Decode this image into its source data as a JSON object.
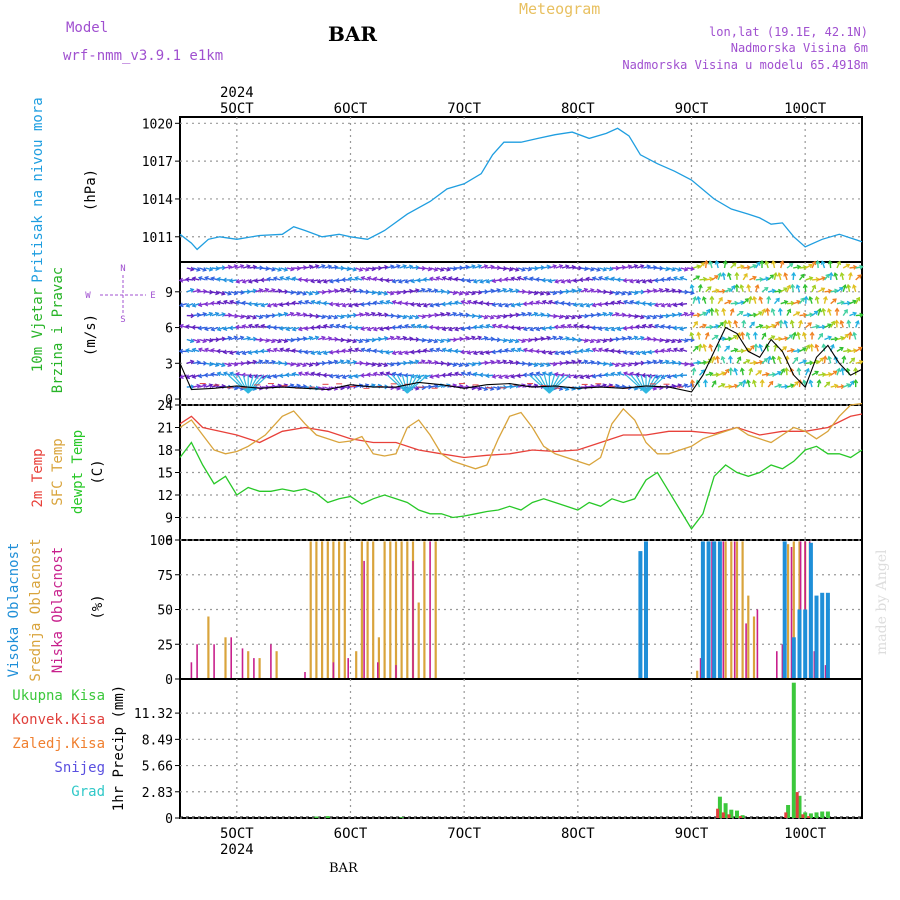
{
  "header": {
    "meteogram": "Meteogram",
    "model_label": "Model",
    "model_name": "wrf-nmm_v3.9.1 e1km",
    "station": "BAR",
    "location": "lon,lat (19.1E, 42.1N)",
    "elevation": "Nadmorska Visina 6m",
    "model_elevation": "Nadmorska Visina u modelu 65.4918m"
  },
  "footer": {
    "station": "BAR",
    "credit": "made by Angel"
  },
  "colors": {
    "pressure": "#1f9ee0",
    "temp2m": "#e8413a",
    "sfctemp": "#d9a43c",
    "dewpoint": "#28c828",
    "high_cloud": "#1f8fd8",
    "mid_cloud": "#d9a43c",
    "low_cloud": "#c8208c",
    "total_precip": "#3cc83c",
    "conv_precip": "#e0403c",
    "freezing_precip": "#f08030",
    "snow": "#5a50e0",
    "hail": "#30c8c8",
    "wind_label": "#28b428",
    "dir_label": "#a050d0",
    "title": "#a050d0"
  },
  "chart_data": [
    {
      "type": "line",
      "title": "Pritisak na nivou mora",
      "ylabel": "(hPa)",
      "ylim": [
        1009,
        1020.5
      ],
      "yticks": [
        1011,
        1014,
        1017,
        1020
      ],
      "x_unit": "day of October 2024",
      "x_ticks": [
        {
          "x": 5,
          "label": "5OCT"
        },
        {
          "x": 6,
          "label": "6OCT"
        },
        {
          "x": 7,
          "label": "7OCT"
        },
        {
          "x": 8,
          "label": "8OCT"
        },
        {
          "x": 9,
          "label": "9OCT"
        },
        {
          "x": 10,
          "label": "10OCT"
        }
      ],
      "x_year": "2024",
      "xlim": [
        4.5,
        10.5
      ],
      "grid": true,
      "series": [
        {
          "x": [
            4.5,
            4.6,
            4.65,
            4.75,
            4.85,
            5.0,
            5.2,
            5.4,
            5.5,
            5.6,
            5.75,
            5.9,
            6.0,
            6.15,
            6.3,
            6.5,
            6.7,
            6.85,
            7.0,
            7.15,
            7.25,
            7.35,
            7.5,
            7.65,
            7.8,
            7.95,
            8.1,
            8.25,
            8.35,
            8.45,
            8.55,
            8.7,
            8.85,
            9.0,
            9.2,
            9.35,
            9.5,
            9.6,
            9.7,
            9.8,
            9.9,
            10.0,
            10.15,
            10.3,
            10.5
          ],
          "y": [
            1011.2,
            1010.5,
            1010.0,
            1010.8,
            1011.0,
            1010.8,
            1011.1,
            1011.2,
            1011.8,
            1011.5,
            1011.0,
            1011.2,
            1011.0,
            1010.8,
            1011.5,
            1012.8,
            1013.8,
            1014.8,
            1015.2,
            1016.0,
            1017.5,
            1018.5,
            1018.5,
            1018.8,
            1019.1,
            1019.3,
            1018.8,
            1019.2,
            1019.6,
            1019.0,
            1017.5,
            1016.8,
            1016.2,
            1015.5,
            1014.0,
            1013.2,
            1012.8,
            1012.5,
            1012.0,
            1012.1,
            1011.0,
            1010.2,
            1010.8,
            1011.2,
            1010.6
          ]
        }
      ]
    },
    {
      "type": "scatter",
      "title": "10m Vjetar Brzina i Pravac",
      "ylabel": "(m/s)",
      "ylim": [
        -0.5,
        11.5
      ],
      "yticks": [
        0,
        3,
        6,
        9
      ],
      "direction_legend": "N, E, S, W compass arrows",
      "grid": true,
      "series": [
        {
          "name": "wind speed",
          "x": [
            4.5,
            4.6,
            4.8,
            5.0,
            5.2,
            5.4,
            5.6,
            5.8,
            6.0,
            6.2,
            6.4,
            6.6,
            6.8,
            7.0,
            7.2,
            7.4,
            7.6,
            7.8,
            8.0,
            8.2,
            8.4,
            8.6,
            8.8,
            9.0,
            9.1,
            9.2,
            9.3,
            9.4,
            9.5,
            9.6,
            9.7,
            9.8,
            9.9,
            10.0,
            10.1,
            10.2,
            10.3,
            10.4,
            10.5
          ],
          "y": [
            3.0,
            0.8,
            0.9,
            1.1,
            0.9,
            1.0,
            0.9,
            0.8,
            1.2,
            1.0,
            1.0,
            1.4,
            1.2,
            0.9,
            1.2,
            1.3,
            1.0,
            1.1,
            0.9,
            1.0,
            0.9,
            1.1,
            1.0,
            0.6,
            2.0,
            4.0,
            6.0,
            5.5,
            4.0,
            3.5,
            5.0,
            4.0,
            2.0,
            1.0,
            3.5,
            4.5,
            3.0,
            2.0,
            2.5
          ]
        }
      ]
    },
    {
      "type": "line",
      "title": "2m Temp / SFC Temp / dewpt Temp",
      "ylabel": "(C)",
      "ylim": [
        6,
        24
      ],
      "yticks": [
        6,
        9,
        12,
        15,
        18,
        21,
        24
      ],
      "grid": true,
      "series": [
        {
          "name": "2m Temp",
          "x": [
            4.5,
            4.6,
            4.7,
            4.85,
            5.0,
            5.2,
            5.4,
            5.6,
            5.8,
            6.0,
            6.2,
            6.4,
            6.6,
            6.8,
            7.0,
            7.2,
            7.4,
            7.6,
            7.8,
            8.0,
            8.2,
            8.4,
            8.6,
            8.8,
            9.0,
            9.2,
            9.4,
            9.6,
            9.8,
            10.0,
            10.2,
            10.4,
            10.5
          ],
          "y": [
            21.5,
            22.5,
            21.0,
            20.5,
            20.0,
            19.0,
            20.5,
            21.0,
            20.5,
            19.5,
            19.0,
            19.0,
            18.0,
            17.5,
            17.0,
            17.3,
            17.5,
            18.0,
            17.8,
            18.0,
            19.0,
            20.0,
            20.0,
            20.5,
            20.5,
            20.2,
            21.0,
            20.0,
            20.5,
            20.5,
            21.0,
            22.5,
            22.8
          ]
        },
        {
          "name": "SFC Temp",
          "x": [
            4.5,
            4.6,
            4.7,
            4.8,
            4.9,
            5.0,
            5.1,
            5.25,
            5.4,
            5.5,
            5.6,
            5.7,
            5.8,
            5.9,
            6.0,
            6.1,
            6.2,
            6.3,
            6.4,
            6.5,
            6.6,
            6.7,
            6.8,
            6.9,
            7.0,
            7.1,
            7.2,
            7.3,
            7.4,
            7.5,
            7.6,
            7.7,
            7.8,
            7.9,
            8.0,
            8.1,
            8.2,
            8.3,
            8.4,
            8.5,
            8.6,
            8.7,
            8.8,
            8.9,
            9.0,
            9.1,
            9.2,
            9.3,
            9.4,
            9.5,
            9.6,
            9.7,
            9.8,
            9.9,
            10.0,
            10.1,
            10.2,
            10.3,
            10.4,
            10.5
          ],
          "y": [
            21.0,
            22.0,
            20.0,
            18.0,
            17.5,
            17.8,
            18.5,
            20.0,
            22.5,
            23.2,
            21.5,
            20.0,
            19.5,
            19.0,
            19.2,
            19.8,
            17.5,
            17.2,
            17.5,
            21.0,
            22.0,
            20.0,
            17.5,
            16.5,
            16.0,
            15.5,
            16.0,
            19.5,
            22.5,
            23.0,
            21.0,
            18.5,
            17.5,
            17.0,
            16.5,
            16.0,
            17.0,
            21.5,
            23.5,
            22.0,
            19.0,
            17.5,
            17.5,
            18.0,
            18.5,
            19.5,
            20.0,
            20.5,
            21.0,
            20.0,
            19.5,
            19.0,
            20.0,
            21.0,
            20.5,
            19.5,
            20.5,
            22.5,
            24.0,
            24.2
          ]
        },
        {
          "name": "dewpt Temp",
          "x": [
            4.5,
            4.6,
            4.7,
            4.8,
            4.9,
            5.0,
            5.1,
            5.2,
            5.3,
            5.4,
            5.5,
            5.6,
            5.7,
            5.8,
            5.9,
            6.0,
            6.1,
            6.2,
            6.3,
            6.4,
            6.5,
            6.6,
            6.7,
            6.8,
            6.9,
            7.0,
            7.1,
            7.2,
            7.3,
            7.4,
            7.5,
            7.6,
            7.7,
            7.8,
            7.9,
            8.0,
            8.1,
            8.2,
            8.3,
            8.4,
            8.5,
            8.6,
            8.7,
            8.8,
            8.9,
            9.0,
            9.1,
            9.2,
            9.3,
            9.4,
            9.5,
            9.6,
            9.7,
            9.8,
            9.9,
            10.0,
            10.1,
            10.2,
            10.3,
            10.4,
            10.5
          ],
          "y": [
            17.0,
            19.0,
            16.0,
            13.5,
            14.5,
            12.0,
            13.0,
            12.5,
            12.5,
            12.8,
            12.5,
            12.8,
            12.2,
            11.0,
            11.5,
            11.8,
            10.8,
            11.5,
            12.0,
            11.5,
            11.0,
            10.0,
            9.5,
            9.5,
            9.0,
            9.2,
            9.5,
            9.8,
            10.0,
            10.5,
            10.0,
            11.0,
            11.5,
            11.0,
            10.5,
            10.0,
            11.0,
            10.5,
            11.5,
            11.0,
            11.5,
            14.0,
            15.0,
            12.5,
            10.0,
            7.5,
            9.5,
            14.5,
            16.0,
            15.0,
            14.5,
            15.0,
            16.0,
            15.5,
            16.5,
            18.0,
            18.5,
            17.5,
            17.5,
            17.0,
            18.0
          ]
        }
      ]
    },
    {
      "type": "bar",
      "title": "Visoka Oblacnost / Srednja Oblacnost / Niska Oblacnost",
      "ylabel": "(%)",
      "ylim": [
        0,
        100
      ],
      "yticks": [
        0,
        25,
        50,
        75,
        100
      ],
      "grid": true,
      "series": [
        {
          "name": "Visoka Oblacnost",
          "x": [
            8.55,
            8.6,
            9.1,
            9.15,
            9.2,
            9.25,
            9.82,
            9.9,
            9.95,
            10.0,
            10.05,
            10.1,
            10.15,
            10.2
          ],
          "y": [
            92,
            99,
            99,
            99,
            99,
            99,
            99,
            30,
            50,
            50,
            98,
            60,
            62,
            62
          ]
        },
        {
          "name": "Srednja Oblacnost",
          "x": [
            4.75,
            4.9,
            5.1,
            5.2,
            5.35,
            5.65,
            5.7,
            5.75,
            5.8,
            5.85,
            5.9,
            5.95,
            6.05,
            6.1,
            6.15,
            6.2,
            6.25,
            6.3,
            6.35,
            6.4,
            6.45,
            6.5,
            6.55,
            6.6,
            6.65,
            6.75,
            9.05,
            9.1,
            9.15,
            9.2,
            9.25,
            9.3,
            9.35,
            9.4,
            9.45,
            9.5,
            9.55,
            9.85,
            9.9,
            9.95,
            10.0,
            10.05,
            10.1
          ],
          "y": [
            45,
            30,
            20,
            15,
            20,
            99,
            99,
            99,
            99,
            99,
            99,
            99,
            20,
            99,
            99,
            99,
            30,
            99,
            99,
            99,
            99,
            99,
            99,
            55,
            99,
            99,
            6,
            99,
            99,
            99,
            99,
            99,
            99,
            99,
            99,
            60,
            45,
            97,
            99,
            99,
            99,
            60,
            50
          ]
        },
        {
          "name": "Niska Oblacnost",
          "x": [
            4.6,
            4.65,
            4.8,
            4.95,
            5.05,
            5.15,
            5.3,
            5.6,
            5.85,
            5.98,
            6.12,
            6.24,
            6.4,
            6.55,
            6.7,
            9.08,
            9.18,
            9.28,
            9.38,
            9.48,
            9.58,
            9.75,
            9.8,
            9.88,
            9.96,
            10.0,
            10.04,
            10.08,
            10.18
          ],
          "y": [
            12,
            25,
            25,
            30,
            22,
            15,
            25,
            5,
            12,
            15,
            85,
            12,
            10,
            85,
            99,
            15,
            99,
            99,
            99,
            40,
            50,
            20,
            25,
            95,
            99,
            99,
            99,
            20,
            10
          ]
        }
      ]
    },
    {
      "type": "bar",
      "title": "Ukupna Kisa / Konvek.Kisa / Zaledj.Kisa / Snijeg / Grad",
      "ylabel": "1hr Precip (mm)",
      "ylim": [
        0,
        15
      ],
      "yticks": [
        0,
        2.83,
        5.66,
        8.49,
        11.32
      ],
      "ytick_labels": [
        "0",
        "2.83",
        "5.66",
        "8.49",
        "11.32"
      ],
      "grid": true,
      "series": [
        {
          "name": "Ukupna Kisa",
          "x": [
            5.7,
            5.8,
            6.45,
            9.25,
            9.3,
            9.35,
            9.4,
            9.45,
            9.85,
            9.9,
            9.95,
            10.0,
            10.05,
            10.1,
            10.15,
            10.2
          ],
          "y": [
            0.15,
            0.2,
            0.1,
            2.3,
            1.6,
            0.9,
            0.8,
            0.3,
            1.4,
            14.6,
            2.4,
            0.6,
            0.5,
            0.6,
            0.7,
            0.7
          ]
        },
        {
          "name": "Konvek.Kisa",
          "x": [
            9.23,
            9.28,
            9.33,
            9.43,
            9.83,
            9.93,
            9.98,
            10.03
          ],
          "y": [
            1.0,
            0.6,
            0.4,
            0.2,
            0.6,
            2.8,
            0.4,
            0.2
          ]
        }
      ]
    }
  ]
}
